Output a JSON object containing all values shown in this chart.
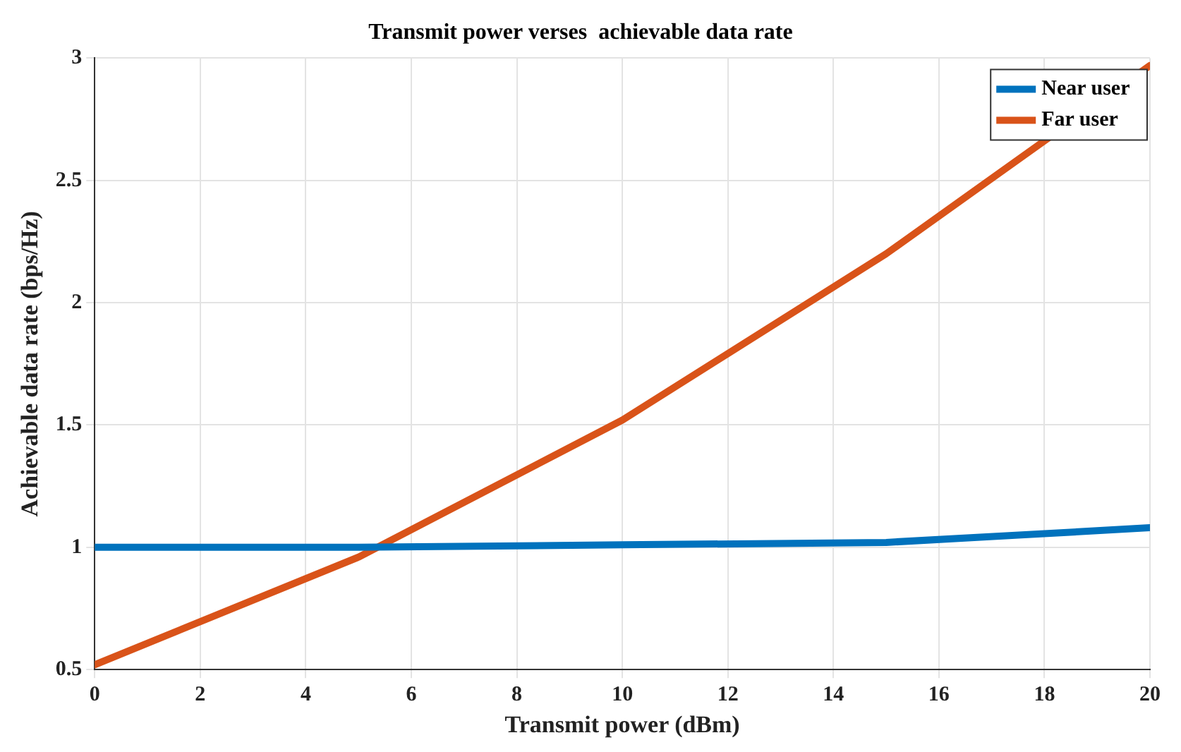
{
  "chart_data": {
    "type": "line",
    "title": "Transmit power verses  achievable data rate",
    "xlabel": "Transmit power (dBm)",
    "ylabel": "Achievable data rate (bps/Hz)",
    "x": [
      0,
      5,
      10,
      15,
      20
    ],
    "series": [
      {
        "name": "Near user",
        "color": "#0072bd",
        "values": [
          1.0,
          1.0,
          1.01,
          1.02,
          1.08
        ]
      },
      {
        "name": "Far user",
        "color": "#d95319",
        "values": [
          0.52,
          0.96,
          1.52,
          2.2,
          2.97
        ]
      }
    ],
    "xlim": [
      0,
      20
    ],
    "xticks": [
      0,
      2,
      4,
      6,
      8,
      10,
      12,
      14,
      16,
      18,
      20
    ],
    "ylim": [
      0.5,
      3
    ],
    "yticks": [
      0.5,
      1,
      1.5,
      2,
      2.5,
      3
    ],
    "grid": true,
    "legend": "top right",
    "marker": "none",
    "line_style": "solid"
  }
}
